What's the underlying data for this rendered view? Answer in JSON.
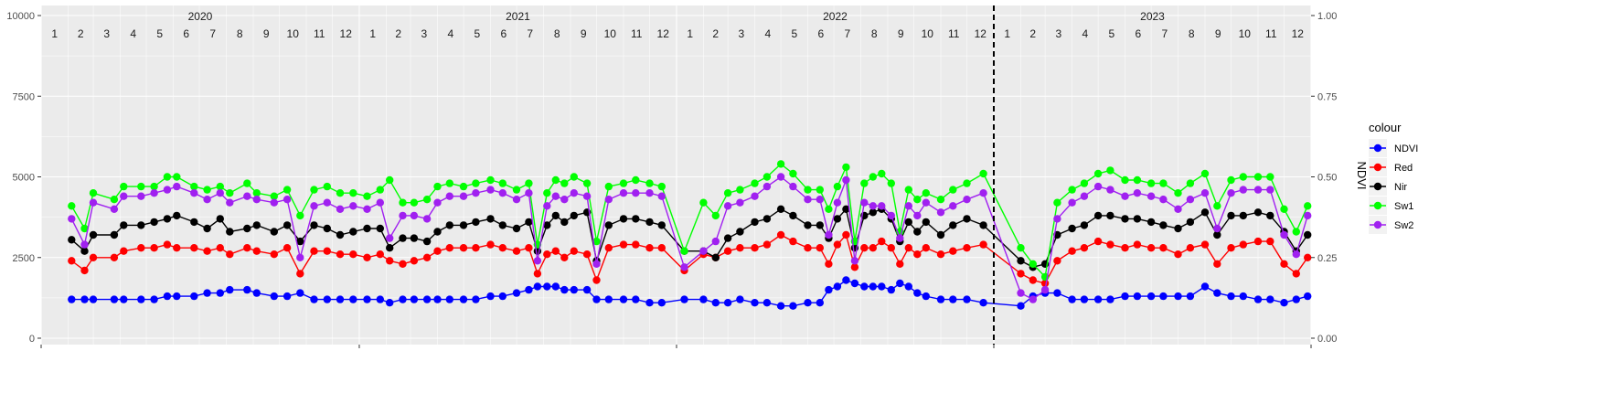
{
  "chart_data": {
    "type": "line",
    "title": "",
    "xlabel": "",
    "ylabel_left": "",
    "ylabel_right": "NDVI",
    "ylim_left": [
      0,
      10000
    ],
    "yticks_left": [
      "0",
      "2500",
      "5000",
      "7500",
      "10000"
    ],
    "ylim_right": [
      0,
      1
    ],
    "yticks_right": [
      "0.00",
      "0.25",
      "0.50",
      "0.75",
      "1.00"
    ],
    "ndvi_scale": 10000,
    "years": [
      "2020",
      "2021",
      "2022",
      "2023"
    ],
    "months": [
      "1",
      "2",
      "3",
      "4",
      "5",
      "6",
      "7",
      "8",
      "9",
      "10",
      "11",
      "12"
    ],
    "vline_date": "2023-01-01",
    "grid": true,
    "legend_title": "colour",
    "legend_position": "right",
    "x_dates": [
      "2020-02-05",
      "2020-02-20",
      "2020-03-01",
      "2020-03-25",
      "2020-04-05",
      "2020-04-25",
      "2020-05-10",
      "2020-05-25",
      "2020-06-05",
      "2020-06-25",
      "2020-07-10",
      "2020-07-25",
      "2020-08-05",
      "2020-08-25",
      "2020-09-05",
      "2020-09-25",
      "2020-10-10",
      "2020-10-25",
      "2020-11-10",
      "2020-11-25",
      "2020-12-10",
      "2020-12-25",
      "2021-01-10",
      "2021-01-25",
      "2021-02-05",
      "2021-02-20",
      "2021-03-05",
      "2021-03-20",
      "2021-04-01",
      "2021-04-15",
      "2021-05-01",
      "2021-05-15",
      "2021-06-01",
      "2021-06-15",
      "2021-07-01",
      "2021-07-15",
      "2021-07-25",
      "2021-08-05",
      "2021-08-15",
      "2021-08-25",
      "2021-09-05",
      "2021-09-20",
      "2021-10-01",
      "2021-10-15",
      "2021-11-01",
      "2021-11-15",
      "2021-12-01",
      "2021-12-15",
      "2022-01-10",
      "2022-02-01",
      "2022-02-15",
      "2022-03-01",
      "2022-03-15",
      "2022-04-01",
      "2022-04-15",
      "2022-05-01",
      "2022-05-15",
      "2022-06-01",
      "2022-06-15",
      "2022-06-25",
      "2022-07-05",
      "2022-07-15",
      "2022-07-25",
      "2022-08-05",
      "2022-08-15",
      "2022-08-25",
      "2022-09-05",
      "2022-09-15",
      "2022-09-25",
      "2022-10-05",
      "2022-10-15",
      "2022-11-01",
      "2022-11-15",
      "2022-12-01",
      "2022-12-20",
      "2023-02-01",
      "2023-02-15",
      "2023-03-01",
      "2023-03-15",
      "2023-04-01",
      "2023-04-15",
      "2023-05-01",
      "2023-05-15",
      "2023-06-01",
      "2023-06-15",
      "2023-07-01",
      "2023-07-15",
      "2023-08-01",
      "2023-08-15",
      "2023-09-01",
      "2023-09-15",
      "2023-10-01",
      "2023-10-15",
      "2023-11-01",
      "2023-11-15",
      "2023-12-01",
      "2023-12-15",
      "2023-12-28"
    ],
    "series": [
      {
        "name": "NDVI",
        "color": "#0000FF",
        "values": [
          0.12,
          0.12,
          0.12,
          0.12,
          0.12,
          0.12,
          0.12,
          0.13,
          0.13,
          0.13,
          0.14,
          0.14,
          0.15,
          0.15,
          0.14,
          0.13,
          0.13,
          0.14,
          0.12,
          0.12,
          0.12,
          0.12,
          0.12,
          0.12,
          0.11,
          0.12,
          0.12,
          0.12,
          0.12,
          0.12,
          0.12,
          0.12,
          0.13,
          0.13,
          0.14,
          0.15,
          0.16,
          0.16,
          0.16,
          0.15,
          0.15,
          0.15,
          0.12,
          0.12,
          0.12,
          0.12,
          0.11,
          0.11,
          0.12,
          0.12,
          0.11,
          0.11,
          0.12,
          0.11,
          0.11,
          0.1,
          0.1,
          0.11,
          0.11,
          0.15,
          0.16,
          0.18,
          0.17,
          0.16,
          0.16,
          0.16,
          0.15,
          0.17,
          0.16,
          0.14,
          0.13,
          0.12,
          0.12,
          0.12,
          0.11,
          0.1,
          0.13,
          0.14,
          0.14,
          0.12,
          0.12,
          0.12,
          0.12,
          0.13,
          0.13,
          0.13,
          0.13,
          0.13,
          0.13,
          0.16,
          0.14,
          0.13,
          0.13,
          0.12,
          0.12,
          0.11,
          0.12,
          0.13
        ]
      },
      {
        "name": "Red",
        "color": "#FF0000",
        "values": [
          2400,
          2100,
          2500,
          2500,
          2700,
          2800,
          2800,
          2900,
          2800,
          2800,
          2700,
          2800,
          2600,
          2800,
          2700,
          2600,
          2800,
          2000,
          2700,
          2700,
          2600,
          2600,
          2500,
          2600,
          2400,
          2300,
          2400,
          2500,
          2700,
          2800,
          2800,
          2800,
          2900,
          2800,
          2700,
          2800,
          2000,
          2600,
          2700,
          2500,
          2700,
          2600,
          1800,
          2800,
          2900,
          2900,
          2800,
          2800,
          2100,
          2600,
          2500,
          2700,
          2800,
          2800,
          2900,
          3200,
          3000,
          2800,
          2800,
          2300,
          2900,
          3200,
          2200,
          2800,
          2800,
          3000,
          2800,
          2300,
          2800,
          2600,
          2800,
          2600,
          2700,
          2800,
          2900,
          2000,
          1800,
          1700,
          2400,
          2700,
          2800,
          3000,
          2900,
          2800,
          2900,
          2800,
          2800,
          2600,
          2800,
          2900,
          2300,
          2800,
          2900,
          3000,
          3000,
          2300,
          2000,
          2500
        ]
      },
      {
        "name": "Nir",
        "color": "#000000",
        "values": [
          3050,
          2700,
          3200,
          3200,
          3500,
          3500,
          3600,
          3700,
          3800,
          3600,
          3400,
          3700,
          3300,
          3400,
          3500,
          3300,
          3500,
          3000,
          3500,
          3400,
          3200,
          3300,
          3400,
          3400,
          2800,
          3100,
          3100,
          3000,
          3300,
          3500,
          3500,
          3600,
          3700,
          3500,
          3400,
          3600,
          2700,
          3500,
          3800,
          3600,
          3800,
          3900,
          2400,
          3500,
          3700,
          3700,
          3600,
          3500,
          2700,
          2700,
          2500,
          3100,
          3300,
          3600,
          3700,
          4000,
          3800,
          3500,
          3500,
          3100,
          3700,
          4000,
          2800,
          3800,
          3900,
          4000,
          3700,
          3000,
          3600,
          3300,
          3600,
          3200,
          3500,
          3700,
          3500,
          2400,
          2200,
          2300,
          3200,
          3400,
          3500,
          3800,
          3800,
          3700,
          3700,
          3600,
          3500,
          3400,
          3600,
          3900,
          3200,
          3800,
          3800,
          3900,
          3800,
          3300,
          2700,
          3200
        ]
      },
      {
        "name": "Sw1",
        "color": "#00FF00",
        "values": [
          4100,
          3400,
          4500,
          4300,
          4700,
          4700,
          4700,
          5000,
          5000,
          4700,
          4600,
          4700,
          4500,
          4800,
          4500,
          4400,
          4600,
          3800,
          4600,
          4700,
          4500,
          4500,
          4400,
          4600,
          4900,
          4200,
          4200,
          4300,
          4700,
          4800,
          4700,
          4800,
          4900,
          4800,
          4600,
          4800,
          2900,
          4500,
          4900,
          4800,
          5000,
          4800,
          3000,
          4700,
          4800,
          4900,
          4800,
          4700,
          2700,
          4200,
          3800,
          4500,
          4600,
          4800,
          5000,
          5400,
          5100,
          4600,
          4600,
          4000,
          4700,
          5300,
          3000,
          4800,
          5000,
          5100,
          4800,
          3300,
          4600,
          4300,
          4500,
          4300,
          4600,
          4800,
          5100,
          2800,
          2300,
          1900,
          4200,
          4600,
          4800,
          5100,
          5200,
          4900,
          4900,
          4800,
          4800,
          4500,
          4800,
          5100,
          4100,
          4900,
          5000,
          5000,
          5000,
          4000,
          3300,
          4100
        ]
      },
      {
        "name": "Sw2",
        "color": "#A020F0",
        "values": [
          3700,
          2900,
          4200,
          4000,
          4400,
          4400,
          4500,
          4600,
          4700,
          4500,
          4300,
          4500,
          4200,
          4400,
          4300,
          4200,
          4300,
          2500,
          4100,
          4200,
          4000,
          4100,
          4000,
          4200,
          3100,
          3800,
          3800,
          3700,
          4200,
          4400,
          4400,
          4500,
          4600,
          4500,
          4300,
          4500,
          2400,
          4100,
          4400,
          4300,
          4500,
          4400,
          2300,
          4300,
          4500,
          4500,
          4500,
          4400,
          2200,
          2700,
          3000,
          4100,
          4200,
          4400,
          4700,
          5000,
          4700,
          4300,
          4300,
          3200,
          4200,
          4900,
          2400,
          4200,
          4100,
          4100,
          3800,
          3100,
          4100,
          3800,
          4200,
          3900,
          4100,
          4300,
          4500,
          1400,
          1200,
          1500,
          3700,
          4200,
          4400,
          4700,
          4600,
          4400,
          4500,
          4400,
          4300,
          4000,
          4300,
          4500,
          3400,
          4500,
          4600,
          4600,
          4600,
          3200,
          2600,
          3800
        ]
      }
    ]
  }
}
